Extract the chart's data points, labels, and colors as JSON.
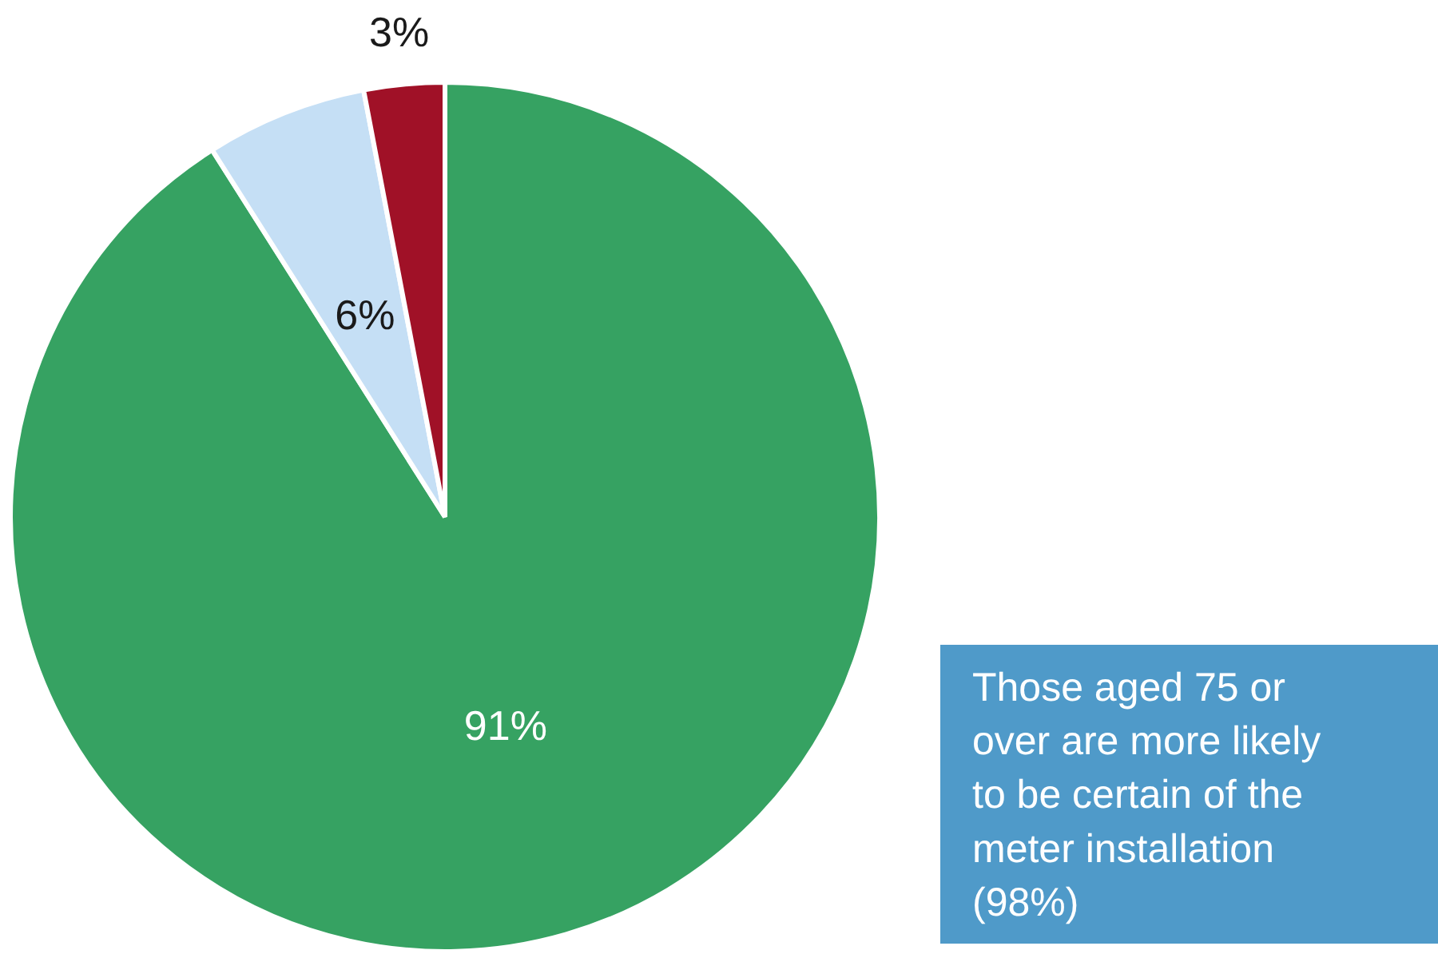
{
  "chart_data": {
    "type": "pie",
    "categories": [
      null,
      null,
      null
    ],
    "values": [
      91,
      6,
      3
    ],
    "colors": [
      "#36a262",
      "#c5dff5",
      "#a01127"
    ],
    "value_labels": [
      "91%",
      "6%",
      "3%"
    ],
    "annotations": [
      "Those aged 75 or over are more likely to be certain of the meter installation (98%)"
    ]
  }
}
